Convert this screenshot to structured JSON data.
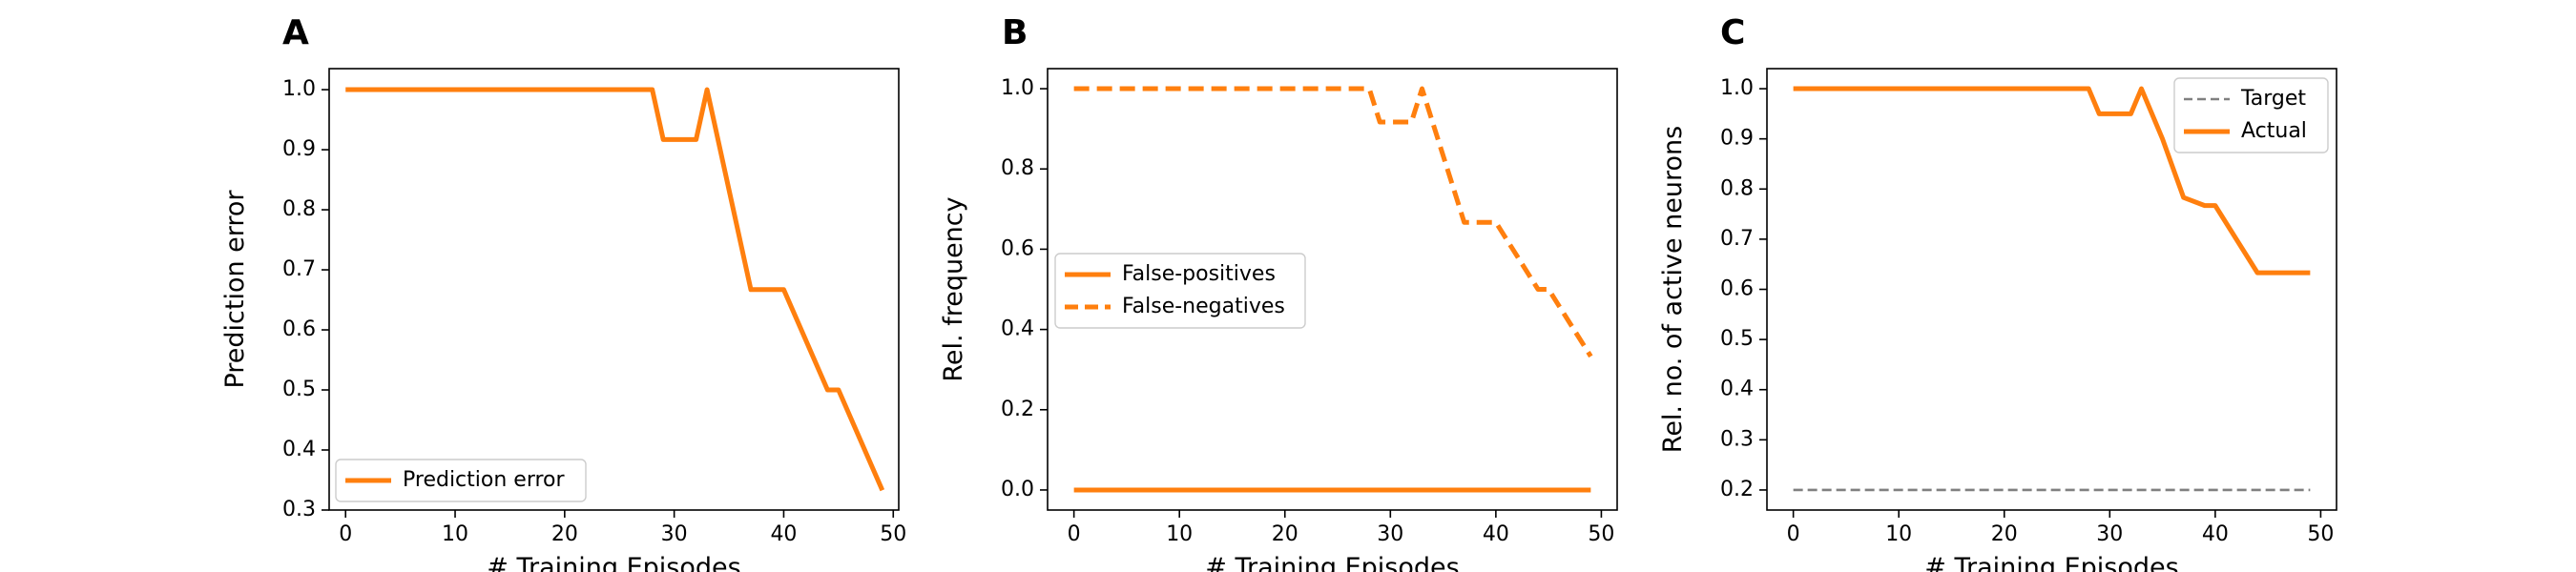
{
  "colors": {
    "series": "#ff7f0e",
    "target": "#808080",
    "axis": "#000000",
    "legend_border": "#cccccc"
  },
  "chart_data": [
    {
      "panel_letter": "A",
      "type": "line",
      "title": "",
      "xlabel": "# Training Episodes",
      "ylabel": "Prediction error",
      "xlim": [
        -1.5,
        50.5
      ],
      "ylim": [
        0.3,
        1.035
      ],
      "xticks": [
        0,
        10,
        20,
        30,
        40,
        50
      ],
      "yticks": [
        0.3,
        0.4,
        0.5,
        0.6,
        0.7,
        0.8,
        0.9,
        1.0
      ],
      "tick_labels_y": [
        "0.3",
        "0.4",
        "0.5",
        "0.6",
        "0.7",
        "0.8",
        "0.9",
        "1.0"
      ],
      "grid": false,
      "legend": {
        "position": "lower-left"
      },
      "series": [
        {
          "name": "Prediction error",
          "style": "solid",
          "color": "#ff7f0e",
          "points": [
            [
              0,
              1.0
            ],
            [
              28,
              1.0
            ],
            [
              29,
              0.917
            ],
            [
              32,
              0.917
            ],
            [
              33,
              1.0
            ],
            [
              37,
              0.667
            ],
            [
              40,
              0.667
            ],
            [
              44,
              0.5
            ],
            [
              45,
              0.5
            ],
            [
              49,
              0.333
            ]
          ]
        }
      ]
    },
    {
      "panel_letter": "B",
      "type": "line",
      "title": "",
      "xlabel": "# Training Episodes",
      "ylabel": "Rel. frequency",
      "xlim": [
        -2.5,
        51.5
      ],
      "ylim": [
        -0.05,
        1.05
      ],
      "xticks": [
        0,
        10,
        20,
        30,
        40,
        50
      ],
      "yticks": [
        0.0,
        0.2,
        0.4,
        0.6,
        0.8,
        1.0
      ],
      "tick_labels_y": [
        "0.0",
        "0.2",
        "0.4",
        "0.6",
        "0.8",
        "1.0"
      ],
      "grid": false,
      "legend": {
        "position": "center-left"
      },
      "series": [
        {
          "name": "False-positives",
          "style": "solid",
          "color": "#ff7f0e",
          "points": [
            [
              0,
              0.0
            ],
            [
              49,
              0.0
            ]
          ]
        },
        {
          "name": "False-negatives",
          "style": "dashed",
          "color": "#ff7f0e",
          "points": [
            [
              0,
              1.0
            ],
            [
              28,
              1.0
            ],
            [
              29,
              0.917
            ],
            [
              32,
              0.917
            ],
            [
              33,
              1.0
            ],
            [
              37,
              0.667
            ],
            [
              40,
              0.667
            ],
            [
              44,
              0.5
            ],
            [
              45,
              0.5
            ],
            [
              49,
              0.333
            ]
          ]
        }
      ]
    },
    {
      "panel_letter": "C",
      "type": "line",
      "title": "",
      "xlabel": "# Training Episodes",
      "ylabel": "Rel. no. of active neurons",
      "xlim": [
        -2.5,
        51.5
      ],
      "ylim": [
        0.16,
        1.04
      ],
      "xticks": [
        0,
        10,
        20,
        30,
        40,
        50
      ],
      "yticks": [
        0.2,
        0.3,
        0.4,
        0.5,
        0.6,
        0.7,
        0.8,
        0.9,
        1.0
      ],
      "tick_labels_y": [
        "0.2",
        "0.3",
        "0.4",
        "0.5",
        "0.6",
        "0.7",
        "0.8",
        "0.9",
        "1.0"
      ],
      "grid": false,
      "legend": {
        "position": "upper-right"
      },
      "series": [
        {
          "name": "Target",
          "style": "dashed-thin",
          "color": "#808080",
          "points": [
            [
              0,
              0.2
            ],
            [
              49,
              0.2
            ]
          ]
        },
        {
          "name": "Actual",
          "style": "solid",
          "color": "#ff7f0e",
          "points": [
            [
              0,
              1.0
            ],
            [
              28,
              1.0
            ],
            [
              29,
              0.95
            ],
            [
              32,
              0.95
            ],
            [
              33,
              1.0
            ],
            [
              35,
              0.9
            ],
            [
              37,
              0.783
            ],
            [
              39,
              0.767
            ],
            [
              40,
              0.767
            ],
            [
              44,
              0.633
            ],
            [
              49,
              0.633
            ]
          ]
        }
      ]
    }
  ]
}
